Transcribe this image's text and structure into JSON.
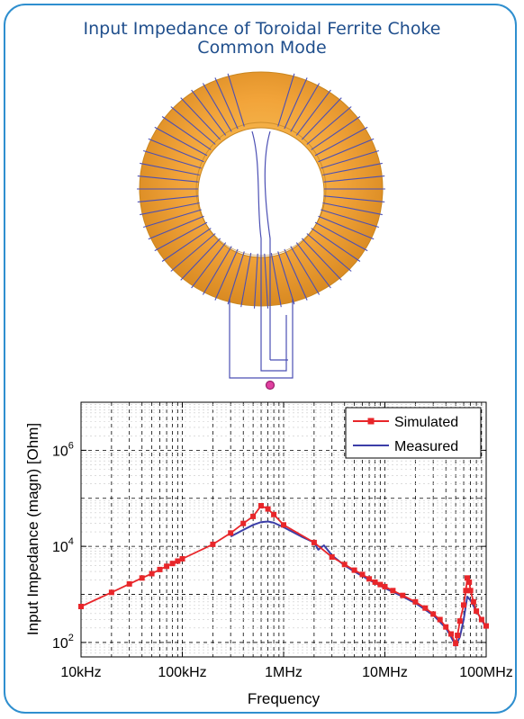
{
  "figure_title": {
    "line1": "Input Impedance of Toroidal Ferrite Choke",
    "line2": "Common Mode"
  },
  "colors": {
    "frame": "#2f8fcf",
    "title": "#1f4e8c",
    "toroid": "#f2a43a",
    "winding": "#4b4fb4",
    "simulated": "#e8262a",
    "measured": "#3b3ea8"
  },
  "toroid_model": {
    "winding_icon": "toroid-winding-icon",
    "feed_port_icon": "feed-port-icon"
  },
  "chart_data": {
    "type": "line",
    "xscale": "log",
    "yscale": "log",
    "xlabel": "Frequency",
    "ylabel": "Input Impedance (magn) [Ohm]",
    "xlim": [
      10000,
      100000000
    ],
    "ylim": [
      50,
      10000000
    ],
    "grid": true,
    "legend_position": "top-right",
    "x_tick_labels": [
      {
        "value": 10000,
        "label": "10kHz"
      },
      {
        "value": 100000,
        "label": "100kHz"
      },
      {
        "value": 1000000,
        "label": "1MHz"
      },
      {
        "value": 10000000,
        "label": "10MHz"
      },
      {
        "value": 100000000,
        "label": "100MHz"
      }
    ],
    "y_tick_labels": [
      {
        "value": 100,
        "base": "10",
        "exp": "2"
      },
      {
        "value": 10000,
        "base": "10",
        "exp": "4"
      },
      {
        "value": 1000000,
        "base": "10",
        "exp": "6"
      }
    ],
    "series": [
      {
        "name": "Simulated",
        "markers": true,
        "x": [
          10000,
          20000,
          30000,
          40000,
          50000,
          60000,
          70000,
          80000,
          90000,
          100000,
          200000,
          300000,
          400000,
          500000,
          600000,
          700000,
          800000,
          1000000,
          2000000,
          3000000,
          4000000,
          5000000,
          6000000,
          7000000,
          8000000,
          9000000,
          10000000,
          12000000,
          15000000,
          20000000,
          25000000,
          30000000,
          35000000,
          40000000,
          45000000,
          50000000,
          52000000,
          55000000,
          60000000,
          63000000,
          65000000,
          68000000,
          70000000,
          75000000,
          80000000,
          90000000,
          100000000
        ],
        "y": [
          560,
          1100,
          1650,
          2200,
          2700,
          3300,
          3850,
          4400,
          4950,
          5500,
          11000,
          19000,
          30000,
          42000,
          70000,
          60000,
          46000,
          28000,
          12000,
          6000,
          4200,
          3200,
          2600,
          2100,
          1800,
          1600,
          1450,
          1200,
          950,
          700,
          520,
          390,
          300,
          210,
          150,
          95,
          140,
          280,
          600,
          1200,
          2200,
          1800,
          1200,
          700,
          450,
          300,
          220
        ]
      },
      {
        "name": "Measured",
        "markers": false,
        "x": [
          300000,
          400000,
          500000,
          600000,
          700000,
          800000,
          1000000,
          1500000,
          2000000,
          2200000,
          2500000,
          3000000,
          4000000,
          5000000,
          7000000,
          10000000,
          15000000,
          20000000,
          30000000,
          40000000,
          45000000,
          50000000,
          55000000,
          60000000,
          65000000,
          70000000,
          80000000,
          90000000,
          100000000
        ],
        "y": [
          16000,
          22000,
          28000,
          32000,
          33000,
          31000,
          25000,
          16000,
          12000,
          8500,
          10500,
          6500,
          4000,
          3000,
          2000,
          1350,
          900,
          660,
          370,
          200,
          130,
          85,
          130,
          300,
          900,
          750,
          450,
          300,
          200
        ]
      }
    ]
  }
}
